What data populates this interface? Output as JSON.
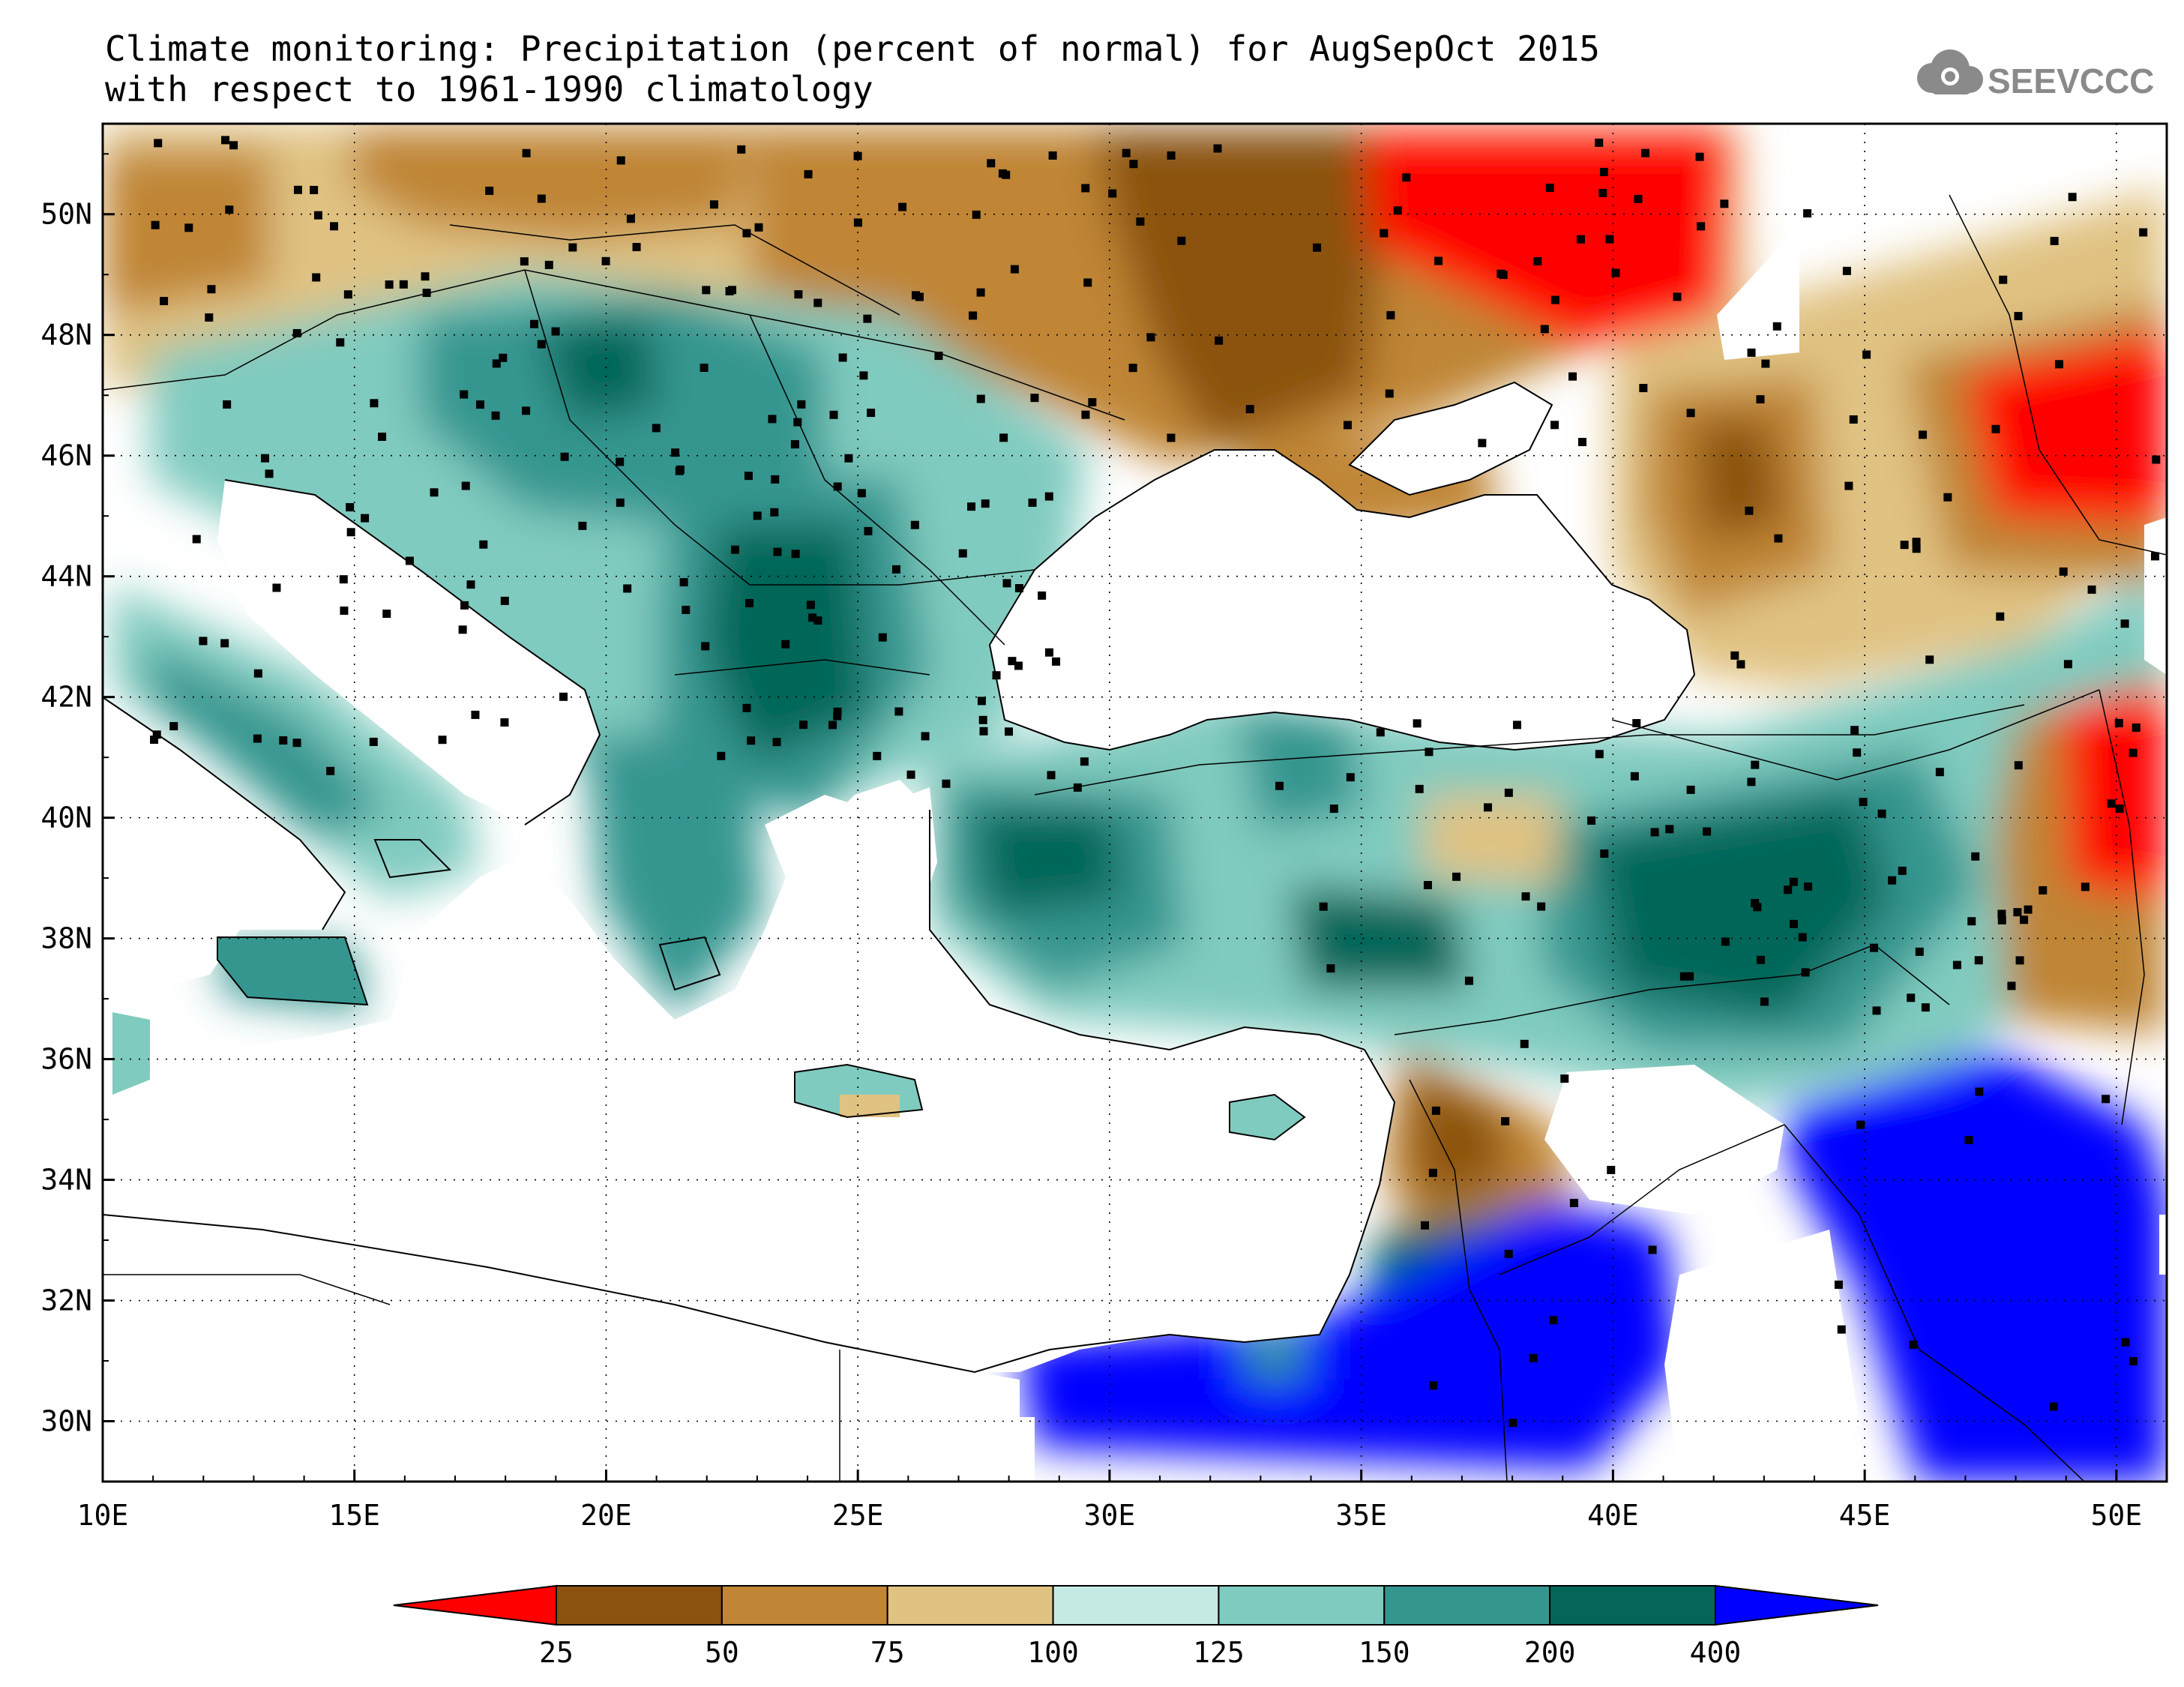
{
  "title": {
    "line1": "Climate monitoring: Precipitation (percent of normal) for AugSepOct 2015",
    "line2": "with respect to 1961-1990 climatology"
  },
  "logo": {
    "text": "SEEVCCC",
    "icon": "cloud-icon"
  },
  "map": {
    "extent": {
      "lon": [
        10,
        51
      ],
      "lat": [
        29,
        51.5
      ]
    },
    "lon_ticks": [
      "10E",
      "15E",
      "20E",
      "25E",
      "30E",
      "35E",
      "40E",
      "45E",
      "50E"
    ],
    "lat_ticks": [
      "30N",
      "32N",
      "34N",
      "36N",
      "38N",
      "40N",
      "42N",
      "44N",
      "46N",
      "48N",
      "50N"
    ],
    "gridlines": "dotted"
  },
  "legend": {
    "boundaries": [
      "25",
      "50",
      "75",
      "100",
      "125",
      "150",
      "200",
      "400"
    ],
    "colors": [
      "#ff0000",
      "#8b5210",
      "#c08535",
      "#e0c282",
      "#c5e9e3",
      "#80cbbf",
      "#359690",
      "#056658",
      "#0000ff"
    ]
  }
}
